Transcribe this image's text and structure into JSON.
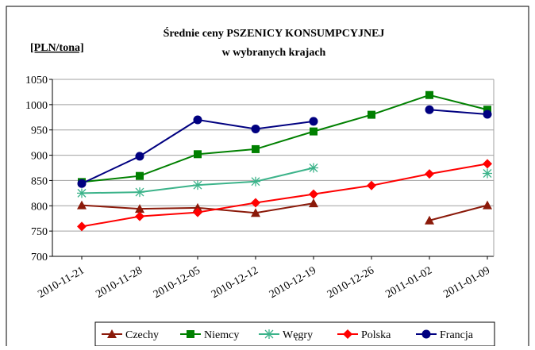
{
  "chart_data": {
    "type": "line",
    "title": "Średnie ceny PSZENICY KONSUMPCYJNEJ",
    "subtitle": "w wybranych krajach",
    "y_label": "[PLN/tona]",
    "categories": [
      "2010-11-21",
      "2010-11-28",
      "2010-12-05",
      "2010-12-12",
      "2010-12-19",
      "2010-12-26",
      "2011-01-02",
      "2011-01-09"
    ],
    "series": [
      {
        "name": "Czechy",
        "color": "#8b1a0a",
        "marker": "triangle",
        "values": [
          801,
          794,
          796,
          786,
          805,
          null,
          771,
          801
        ]
      },
      {
        "name": "Niemcy",
        "color": "#008000",
        "marker": "square",
        "values": [
          847,
          859,
          902,
          912,
          947,
          980,
          1019,
          990
        ]
      },
      {
        "name": "Węgry",
        "color": "#3cb38a",
        "marker": "asterisk",
        "values": [
          825,
          827,
          841,
          848,
          875,
          null,
          null,
          864
        ]
      },
      {
        "name": "Polska",
        "color": "#ff0000",
        "marker": "diamond",
        "values": [
          759,
          779,
          787,
          806,
          823,
          840,
          863,
          883
        ]
      },
      {
        "name": "Francja",
        "color": "#000080",
        "marker": "circle",
        "values": [
          844,
          898,
          970,
          952,
          967,
          null,
          990,
          981
        ]
      }
    ],
    "ylim": [
      700,
      1050
    ],
    "yticks": [
      700,
      750,
      800,
      850,
      900,
      950,
      1000,
      1050
    ],
    "grid": true
  }
}
